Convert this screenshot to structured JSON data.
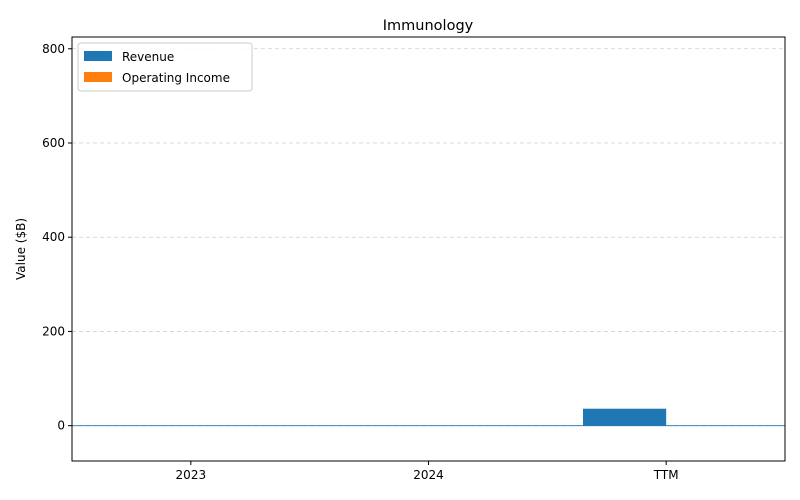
{
  "chart_data": {
    "type": "bar",
    "title": "Immunology",
    "xlabel": "",
    "ylabel": "Value ($B)",
    "categories": [
      "2023",
      "2024",
      "TTM"
    ],
    "series": [
      {
        "name": "Revenue",
        "color": "#1f77b4",
        "values": [
          0,
          0,
          36
        ]
      },
      {
        "name": "Operating Income",
        "color": "#ff7f0e",
        "values": [
          0,
          0,
          0
        ]
      }
    ],
    "ylim": [
      -75,
      825
    ],
    "yticks": [
      "0",
      "200",
      "400",
      "600",
      "800"
    ],
    "grid": true,
    "legend_position": "top-left",
    "baseline_color": "#1f77b4"
  }
}
